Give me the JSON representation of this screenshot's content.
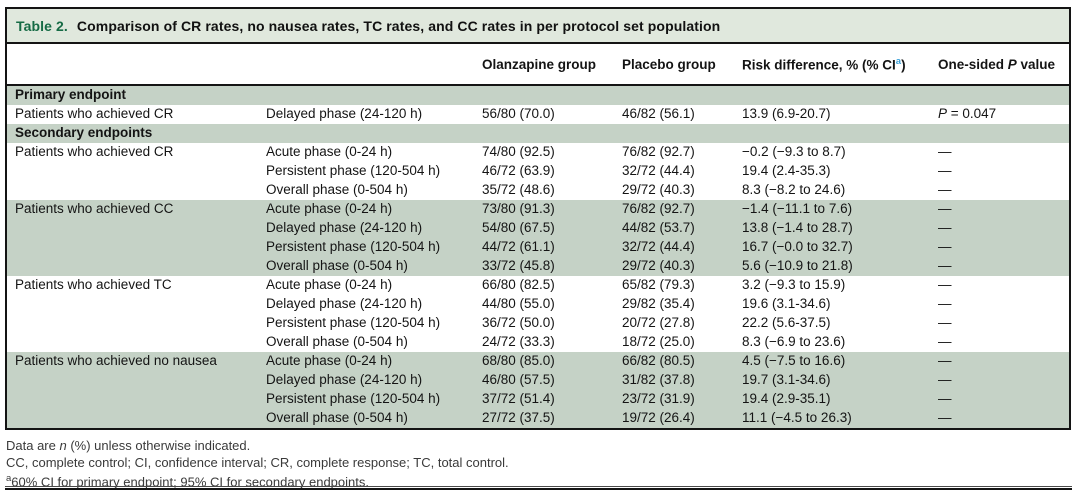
{
  "table": {
    "title_label": "Table 2.",
    "title_text": "Comparison of CR rates, no nausea rates, TC rates, and CC rates in per protocol set population"
  },
  "columns": {
    "olanzapine": "Olanzapine group",
    "placebo": "Placebo group",
    "risk_prefix": "Risk difference, % (% CI",
    "risk_sup": "a",
    "risk_suffix": ")",
    "p_prefix": "One-sided ",
    "p_italic": "P",
    "p_suffix": " value"
  },
  "sections": [
    {
      "header": "Primary endpoint",
      "groups": [
        {
          "endpoint": "Patients who achieved CR",
          "shade": false,
          "rows": [
            {
              "phase": "Delayed phase (24-120 h)",
              "olanzapine": "56/80 (70.0)",
              "placebo": "46/82 (56.1)",
              "risk": "13.9 (6.9-20.7)",
              "p_italic_label": "P",
              "p_text": " = 0.047"
            }
          ]
        }
      ]
    },
    {
      "header": "Secondary endpoints",
      "groups": [
        {
          "endpoint": "Patients who achieved CR",
          "shade": false,
          "rows": [
            {
              "phase": "Acute phase (0-24 h)",
              "olanzapine": "74/80 (92.5)",
              "placebo": "76/82 (92.7)",
              "risk": "−0.2 (−9.3 to 8.7)",
              "p_text": "—"
            },
            {
              "phase": "Persistent phase (120-504 h)",
              "olanzapine": "46/72 (63.9)",
              "placebo": "32/72 (44.4)",
              "risk": "19.4 (2.4-35.3)",
              "p_text": "—"
            },
            {
              "phase": "Overall phase (0-504 h)",
              "olanzapine": "35/72 (48.6)",
              "placebo": "29/72 (40.3)",
              "risk": "8.3 (−8.2 to 24.6)",
              "p_text": "—"
            }
          ]
        },
        {
          "endpoint": "Patients who achieved CC",
          "shade": true,
          "rows": [
            {
              "phase": "Acute phase (0-24 h)",
              "olanzapine": "73/80 (91.3)",
              "placebo": "76/82 (92.7)",
              "risk": "−1.4 (−11.1 to 7.6)",
              "p_text": "—"
            },
            {
              "phase": "Delayed phase (24-120 h)",
              "olanzapine": "54/80 (67.5)",
              "placebo": "44/82 (53.7)",
              "risk": "13.8 (−1.4 to 28.7)",
              "p_text": "—"
            },
            {
              "phase": "Persistent phase (120-504 h)",
              "olanzapine": "44/72 (61.1)",
              "placebo": "32/72 (44.4)",
              "risk": "16.7 (−0.0 to 32.7)",
              "p_text": "—"
            },
            {
              "phase": "Overall phase (0-504 h)",
              "olanzapine": "33/72 (45.8)",
              "placebo": "29/72 (40.3)",
              "risk": "5.6 (−10.9 to 21.8)",
              "p_text": "—"
            }
          ]
        },
        {
          "endpoint": "Patients who achieved TC",
          "shade": false,
          "rows": [
            {
              "phase": "Acute phase (0-24 h)",
              "olanzapine": "66/80 (82.5)",
              "placebo": "65/82 (79.3)",
              "risk": "3.2 (−9.3 to 15.9)",
              "p_text": "—"
            },
            {
              "phase": "Delayed phase (24-120 h)",
              "olanzapine": "44/80 (55.0)",
              "placebo": "29/82 (35.4)",
              "risk": "19.6 (3.1-34.6)",
              "p_text": "—"
            },
            {
              "phase": "Persistent phase (120-504 h)",
              "olanzapine": "36/72 (50.0)",
              "placebo": "20/72 (27.8)",
              "risk": "22.2 (5.6-37.5)",
              "p_text": "—"
            },
            {
              "phase": "Overall phase (0-504 h)",
              "olanzapine": "24/72 (33.3)",
              "placebo": "18/72 (25.0)",
              "risk": "8.3 (−6.9 to 23.6)",
              "p_text": "—"
            }
          ]
        },
        {
          "endpoint": "Patients who achieved no nausea",
          "shade": true,
          "rows": [
            {
              "phase": "Acute phase (0-24 h)",
              "olanzapine": "68/80 (85.0)",
              "placebo": "66/82 (80.5)",
              "risk": "4.5 (−7.5 to 16.6)",
              "p_text": "—"
            },
            {
              "phase": "Delayed phase (24-120 h)",
              "olanzapine": "46/80 (57.5)",
              "placebo": "31/82 (37.8)",
              "risk": "19.7 (3.1-34.6)",
              "p_text": "—"
            },
            {
              "phase": "Persistent phase (120-504 h)",
              "olanzapine": "37/72 (51.4)",
              "placebo": "23/72 (31.9)",
              "risk": "19.4 (2.9-35.1)",
              "p_text": "—"
            },
            {
              "phase": "Overall phase (0-504 h)",
              "olanzapine": "27/72 (37.5)",
              "placebo": "19/72 (26.4)",
              "risk": "11.1 (−4.5 to 26.3)",
              "p_text": "—"
            }
          ]
        }
      ]
    }
  ],
  "footnotes": {
    "line1_prefix": "Data are ",
    "line1_italic": "n",
    "line1_suffix": " (%) unless otherwise indicated.",
    "line2": "CC, complete control; CI, confidence interval; CR, complete response; TC, total control.",
    "line3_sup": "a",
    "line3_text": "60% CI for primary endpoint; 95% CI for secondary endpoints."
  },
  "colors": {
    "band_green": "#c5d2c6",
    "title_bar_green": "#e0e8dd",
    "table_label_green": "#166b45",
    "superscript_blue": "#3aa0d8"
  }
}
